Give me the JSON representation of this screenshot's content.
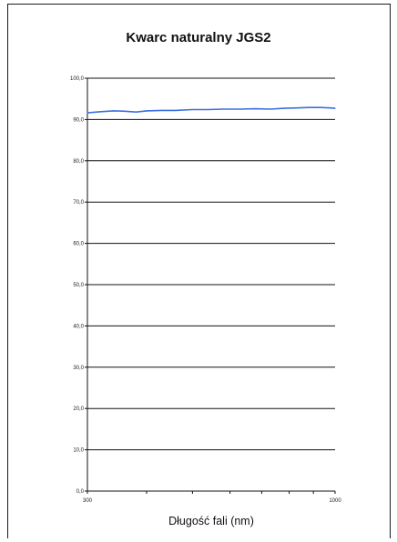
{
  "chart_data": {
    "type": "line",
    "title": "Kwarc naturalny JGS2",
    "xlabel": "Długość fali (nm)",
    "ylabel": "",
    "xscale": "log",
    "xlim": [
      300,
      1000
    ],
    "ylim": [
      0,
      100
    ],
    "x_ticks": [
      "300",
      "1000"
    ],
    "y_ticks": [
      "0,0",
      "10,0",
      "20,0",
      "30,0",
      "40,0",
      "50,0",
      "60,0",
      "70,0",
      "80,0",
      "90,0",
      "100,0"
    ],
    "grid": "horizontal",
    "legend": "none",
    "series": [
      {
        "color": "#3b6fe0",
        "x": [
          300,
          320,
          340,
          360,
          380,
          400,
          430,
          460,
          500,
          540,
          580,
          630,
          680,
          730,
          780,
          830,
          880,
          930,
          980,
          1000
        ],
        "y": [
          91.6,
          91.9,
          92.1,
          92.0,
          91.8,
          92.1,
          92.2,
          92.2,
          92.4,
          92.4,
          92.5,
          92.5,
          92.6,
          92.5,
          92.7,
          92.8,
          92.9,
          92.9,
          92.8,
          92.7
        ]
      }
    ]
  }
}
